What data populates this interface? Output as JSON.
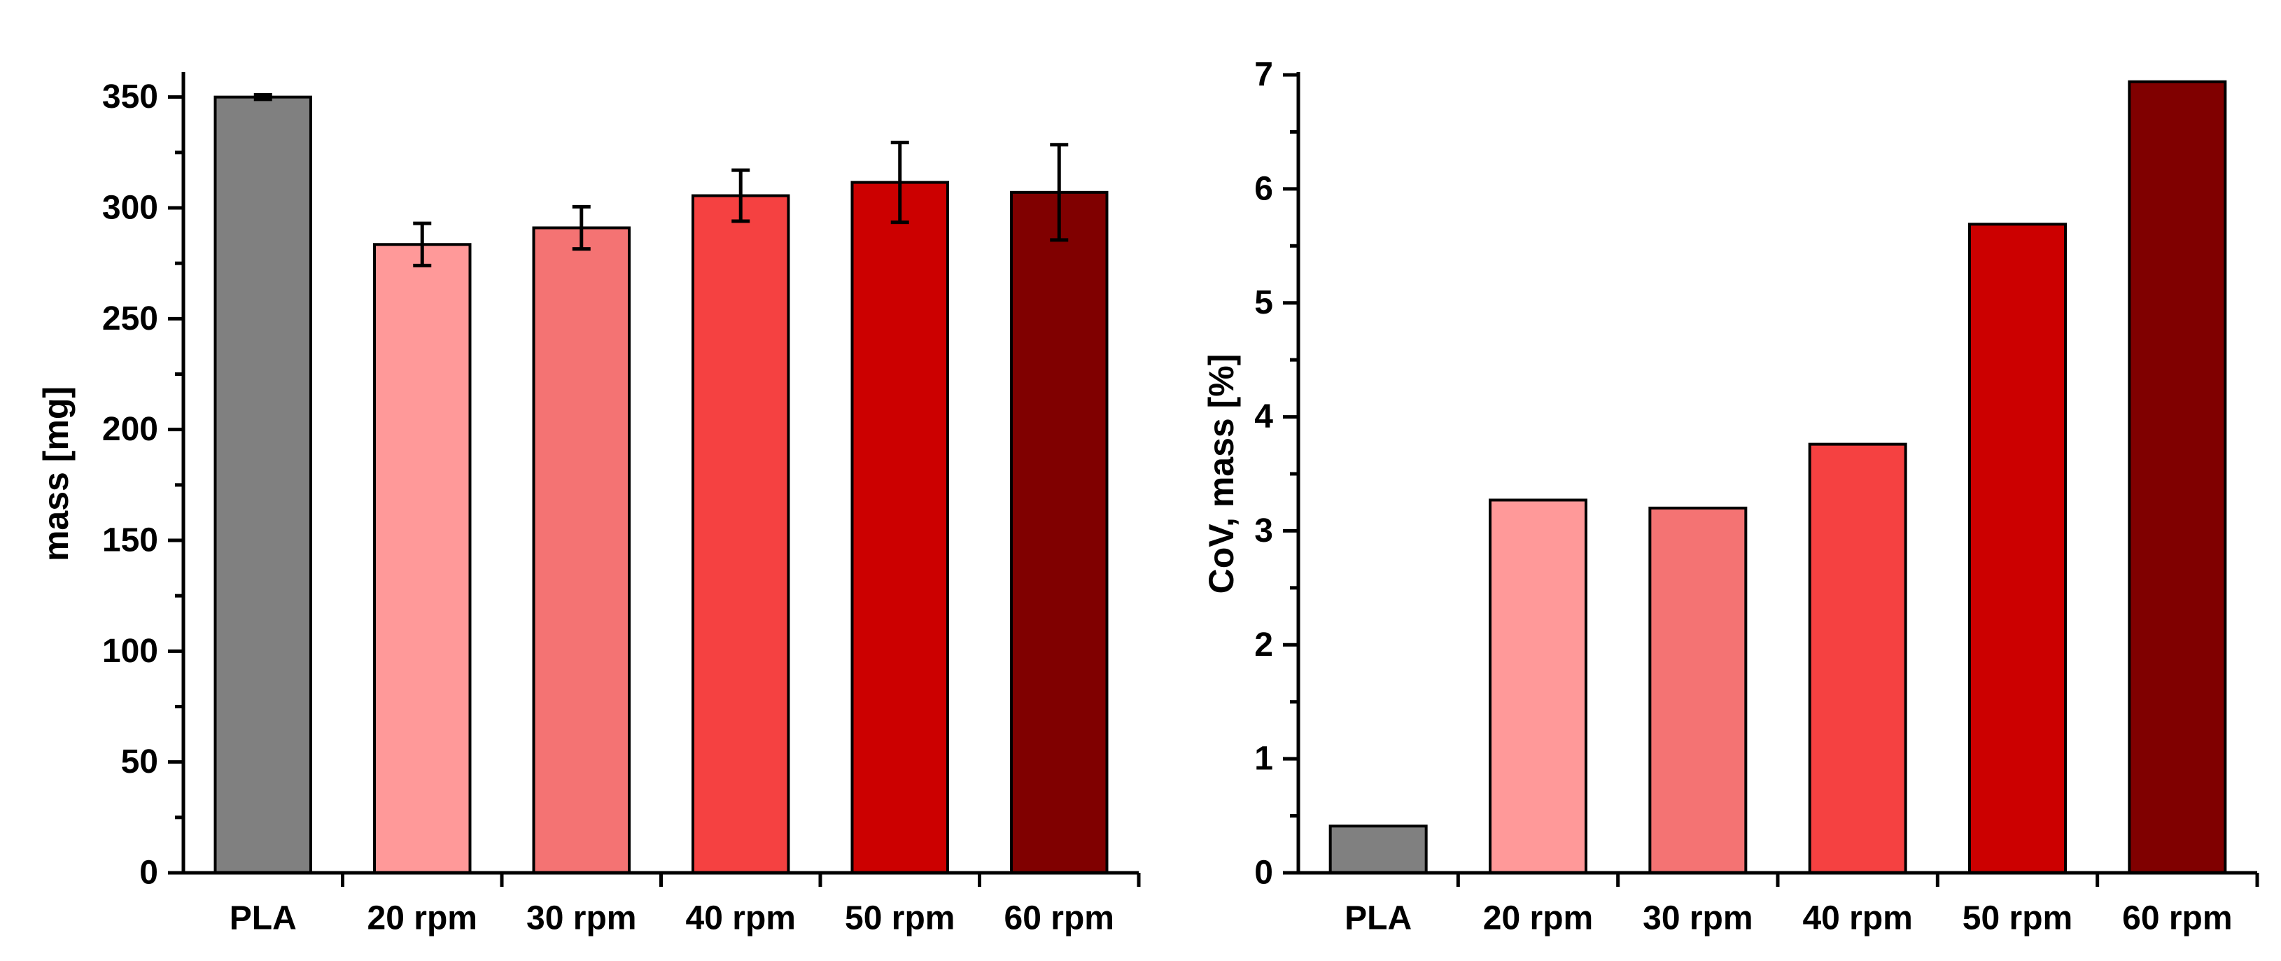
{
  "chart_data": [
    {
      "type": "bar",
      "title": "",
      "xlabel": "",
      "ylabel": "mass [mg]",
      "categories": [
        "PLA",
        "20 rpm",
        "30 rpm",
        "40 rpm",
        "50 rpm",
        "60 rpm"
      ],
      "values": [
        350,
        283.5,
        291,
        305.5,
        311.5,
        307
      ],
      "errors": [
        1,
        9.5,
        9.5,
        11.5,
        18,
        21.5
      ],
      "colors": [
        "#808080",
        "#FF9999",
        "#F47373",
        "#F54141",
        "#CC0000",
        "#800000"
      ],
      "ylim": [
        0,
        360
      ],
      "yticks": [
        "0",
        "50",
        "100",
        "150",
        "200",
        "250",
        "300",
        "350"
      ],
      "ytick_values": [
        0,
        50,
        100,
        150,
        200,
        250,
        300,
        350
      ],
      "yminor_step": 25
    },
    {
      "type": "bar",
      "title": "",
      "xlabel": "",
      "ylabel": "CoV, mass [%]",
      "categories": [
        "PLA",
        "20 rpm",
        "30 rpm",
        "40 rpm",
        "50 rpm",
        "60 rpm"
      ],
      "values": [
        0.41,
        3.27,
        3.2,
        3.76,
        5.69,
        6.94
      ],
      "colors": [
        "#808080",
        "#FF9999",
        "#F47373",
        "#F54141",
        "#CC0000",
        "#800000"
      ],
      "ylim": [
        0,
        7
      ],
      "yticks": [
        "0",
        "1",
        "2",
        "3",
        "4",
        "5",
        "6",
        "7"
      ],
      "ytick_values": [
        0,
        1,
        2,
        3,
        4,
        5,
        6,
        7
      ],
      "yminor_step": 0.5
    }
  ]
}
